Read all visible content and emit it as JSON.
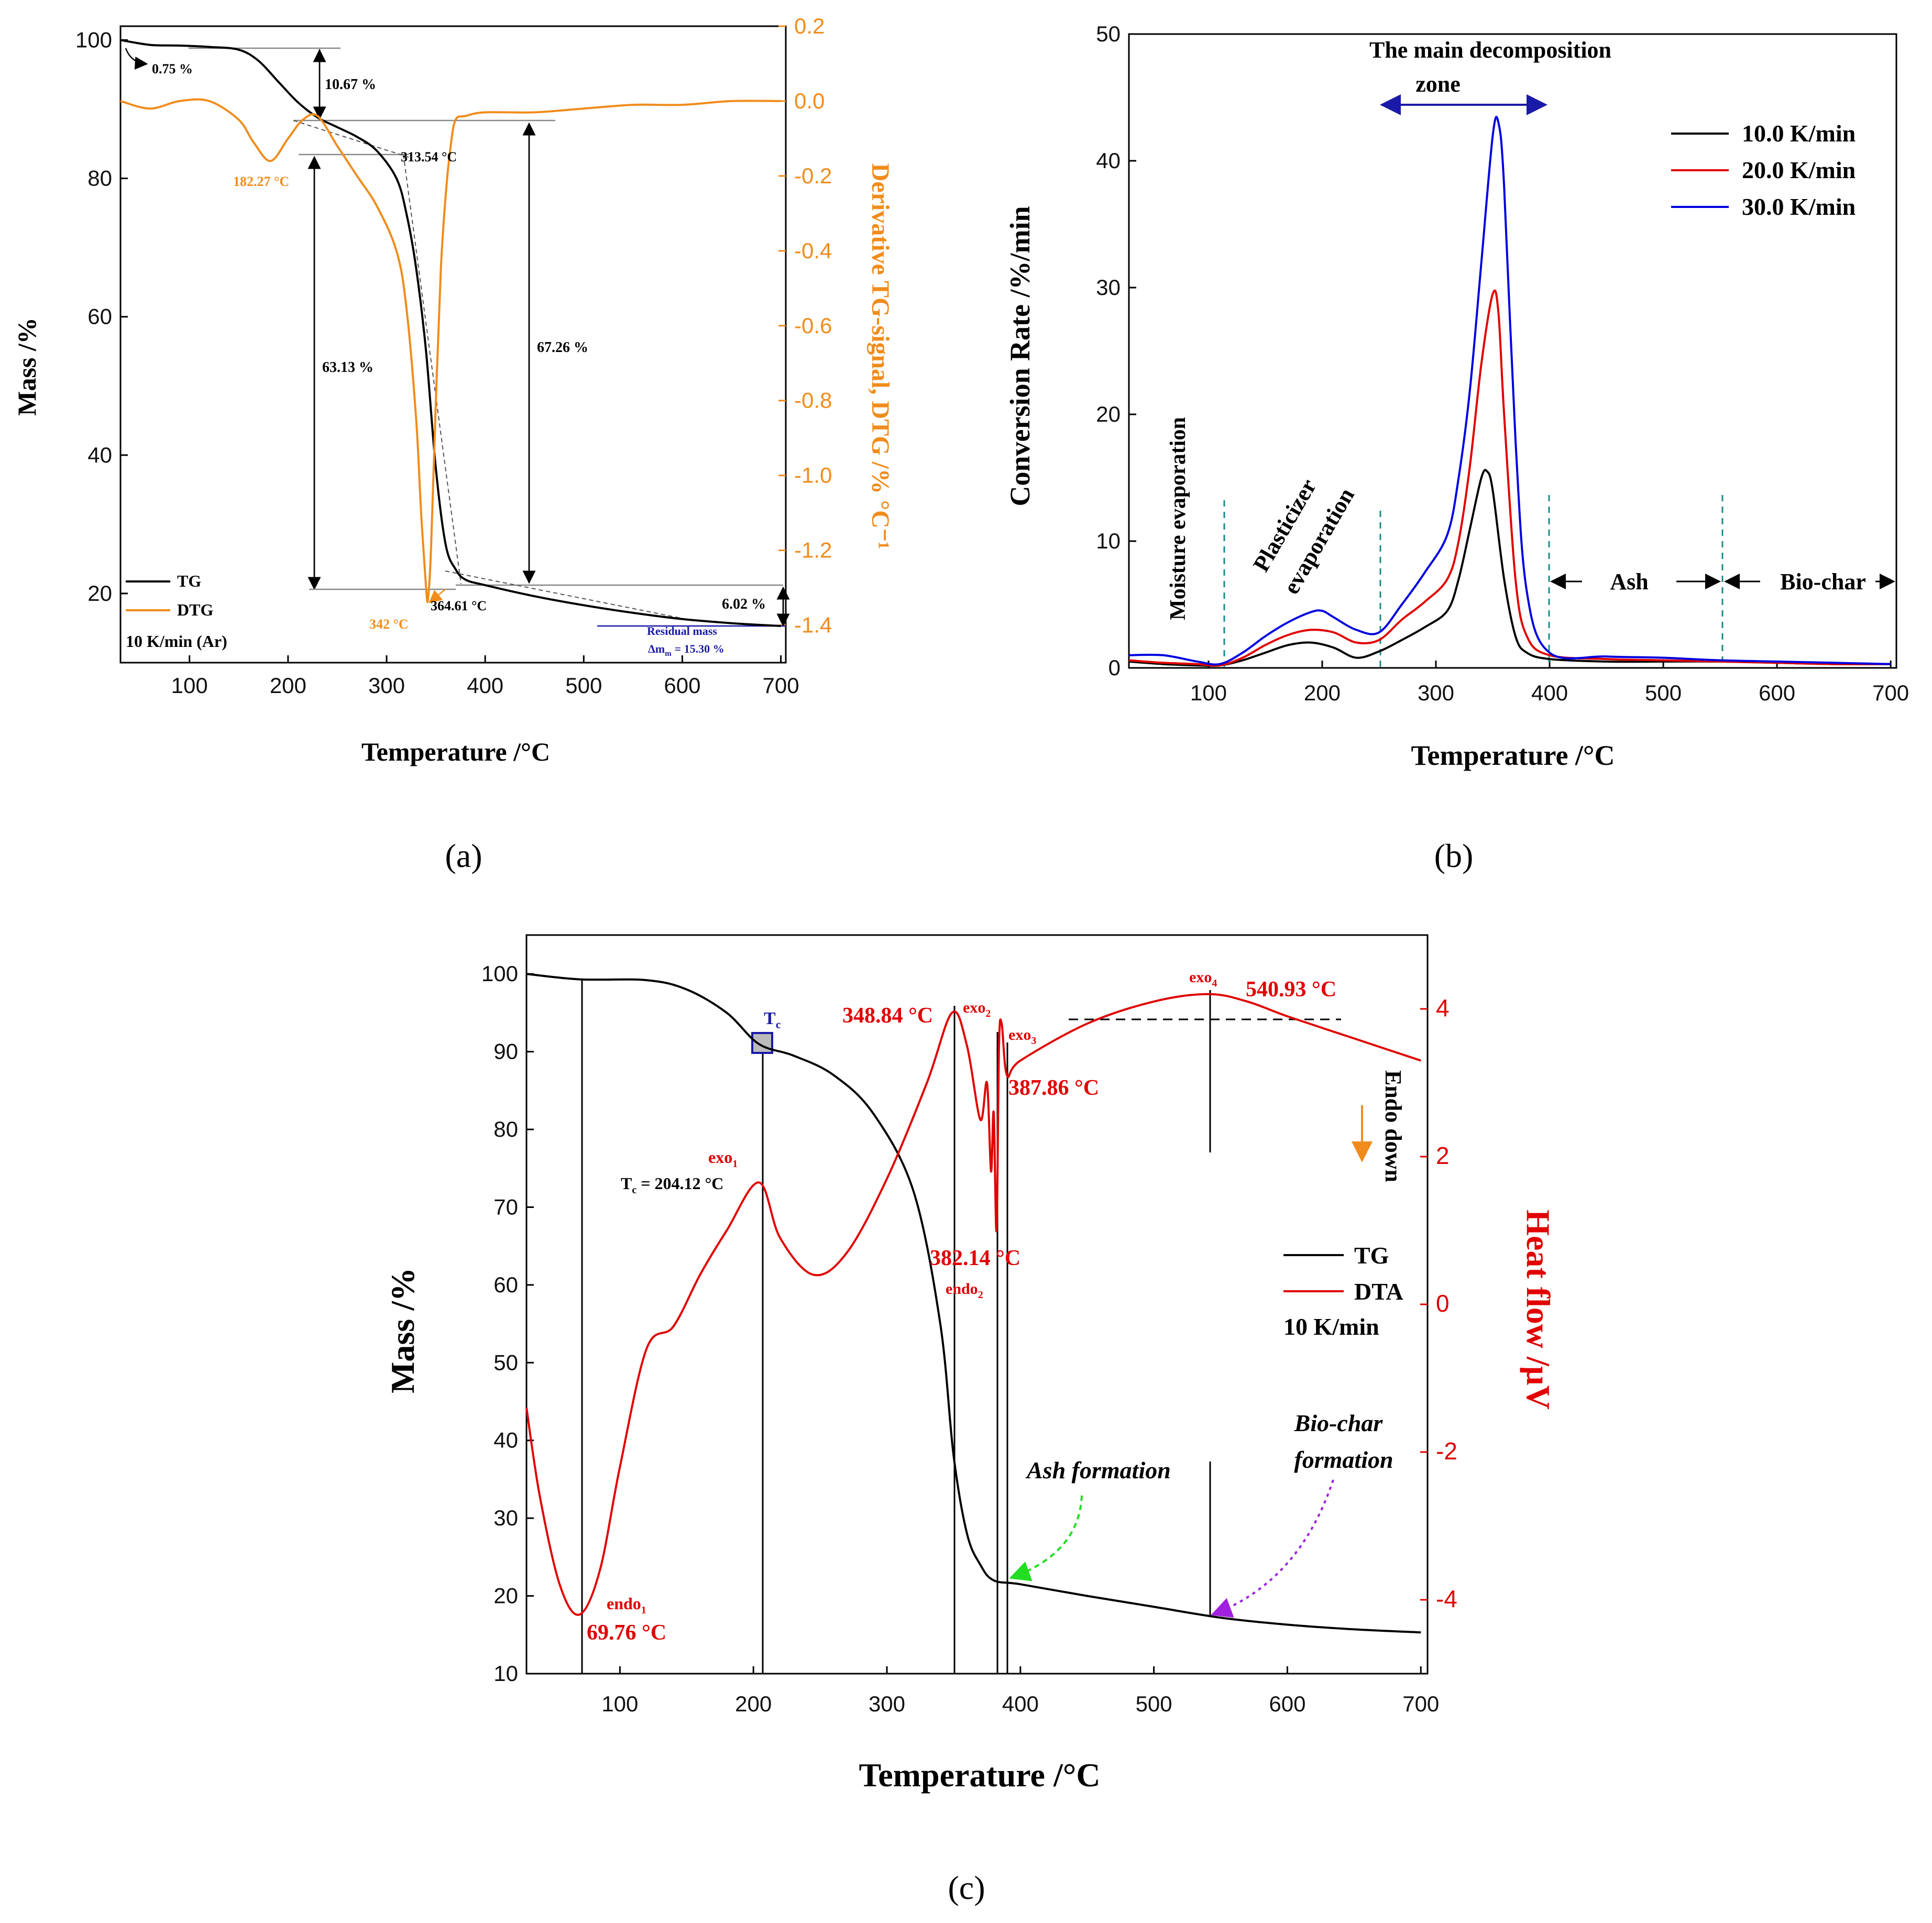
{
  "chart_data": [
    {
      "panel": "(a)",
      "type": "line",
      "xlabel": "Temperature /°C",
      "ylabel": "Mass /%",
      "ylabel_right": "Derivative TG-signal, DTG /% °C⁻¹",
      "xlim": [
        30,
        705
      ],
      "ylim": [
        10,
        102
      ],
      "ylim_right": [
        -1.5,
        0.2
      ],
      "xticks": [
        100,
        200,
        300,
        400,
        500,
        600,
        700
      ],
      "yticks": [
        20,
        40,
        60,
        80,
        100
      ],
      "yticks_right": [
        "0.2",
        "0.0",
        "-0.2",
        "-0.4",
        "-0.6",
        "-0.8",
        "-1.0",
        "-1.2",
        "-1.4"
      ],
      "legend": [
        "TG",
        "DTG",
        "10 K/min (Ar)"
      ],
      "legend_position": "bottom-left",
      "colors": {
        "TG": "#000000",
        "DTG": "#f08c1c"
      },
      "series": [
        {
          "name": "TG",
          "axis": "left",
          "x": [
            30,
            60,
            90,
            120,
            150,
            170,
            190,
            210,
            230,
            250,
            270,
            290,
            310,
            320,
            330,
            340,
            350,
            360,
            370,
            380,
            400,
            450,
            500,
            550,
            600,
            650,
            700
          ],
          "y": [
            100,
            99.3,
            99.2,
            99,
            98.6,
            97,
            94,
            91,
            88.8,
            87.4,
            86,
            84,
            80,
            75,
            67,
            55,
            38,
            27,
            23.5,
            22,
            21.2,
            19.6,
            18.3,
            17.2,
            16.3,
            15.7,
            15.3
          ]
        },
        {
          "name": "DTG",
          "axis": "right",
          "x": [
            30,
            60,
            90,
            120,
            150,
            165,
            182.27,
            200,
            215,
            230,
            250,
            270,
            290,
            310,
            320,
            330,
            335,
            340,
            342,
            345,
            350,
            355,
            360,
            365,
            370,
            380,
            400,
            450,
            500,
            550,
            600,
            650,
            700
          ],
          "y": [
            0.0,
            -0.02,
            0.0,
            0.0,
            -0.05,
            -0.11,
            -0.16,
            -0.1,
            -0.05,
            -0.04,
            -0.12,
            -0.2,
            -0.28,
            -0.4,
            -0.55,
            -0.85,
            -1.1,
            -1.3,
            -1.33,
            -1.2,
            -0.8,
            -0.45,
            -0.25,
            -0.12,
            -0.05,
            -0.04,
            -0.03,
            -0.03,
            -0.02,
            -0.01,
            -0.01,
            0.0,
            0.0
          ]
        }
      ],
      "annotations": [
        "0.75 %",
        "10.67 %",
        "182.27 °C",
        "313.54 °C",
        "63.13 %",
        "67.26 %",
        "342 °C",
        "364.61 °C",
        "6.02 %",
        "Residual mass",
        "Δm",
        "m",
        "= 15.30 %"
      ]
    },
    {
      "panel": "(b)",
      "type": "line",
      "xlabel": "Temperature /°C",
      "ylabel": "Conversion Rate /%/min",
      "xlim": [
        30,
        705
      ],
      "ylim": [
        0,
        50
      ],
      "xticks": [
        100,
        200,
        300,
        400,
        500,
        600,
        700
      ],
      "yticks": [
        0,
        10,
        20,
        30,
        40,
        50
      ],
      "legend": [
        "10.0 K/min",
        "20.0 K/min",
        "30.0 K/min"
      ],
      "legend_position": "top-right",
      "colors": {
        "10.0 K/min": "#000000",
        "20.0 K/min": "#e00000",
        "30.0 K/min": "#0000e0"
      },
      "series": [
        {
          "name": "10.0 K/min",
          "x": [
            30,
            60,
            90,
            110,
            130,
            150,
            170,
            190,
            210,
            230,
            250,
            270,
            290,
            310,
            320,
            330,
            340,
            345,
            350,
            360,
            370,
            380,
            400,
            450,
            500,
            550,
            600,
            650,
            700
          ],
          "y": [
            0.5,
            0.3,
            0.2,
            0.2,
            0.6,
            1.2,
            1.8,
            2.0,
            1.6,
            0.8,
            1.3,
            2.2,
            3.2,
            4.5,
            7,
            11,
            15,
            15.5,
            14,
            7,
            2.5,
            1.2,
            0.7,
            0.5,
            0.5,
            0.5,
            0.4,
            0.3,
            0.3
          ]
        },
        {
          "name": "20.0 K/min",
          "x": [
            30,
            60,
            90,
            110,
            130,
            150,
            170,
            190,
            210,
            230,
            250,
            270,
            290,
            310,
            320,
            330,
            340,
            350,
            355,
            360,
            370,
            380,
            400,
            450,
            500,
            550,
            600,
            650,
            700
          ],
          "y": [
            0.6,
            0.4,
            0.3,
            0.2,
            0.8,
            1.8,
            2.6,
            3.0,
            2.8,
            2.0,
            2.2,
            3.8,
            5.2,
            7,
            10,
            16,
            24,
            29.5,
            28,
            20,
            7,
            2.5,
            1.0,
            0.7,
            0.6,
            0.5,
            0.4,
            0.3,
            0.3
          ]
        },
        {
          "name": "30.0 K/min",
          "x": [
            30,
            60,
            90,
            110,
            130,
            150,
            170,
            190,
            200,
            210,
            230,
            250,
            270,
            290,
            310,
            320,
            330,
            340,
            350,
            355,
            360,
            370,
            380,
            400,
            450,
            500,
            550,
            600,
            650,
            700
          ],
          "y": [
            1.0,
            1.0,
            0.5,
            0.3,
            1.2,
            2.5,
            3.6,
            4.4,
            4.5,
            4.0,
            3.0,
            2.8,
            5,
            7.5,
            10.5,
            15,
            22,
            32,
            42,
            43,
            38,
            18,
            6,
            1.2,
            0.9,
            0.8,
            0.6,
            0.5,
            0.4,
            0.3
          ]
        }
      ],
      "annotations": [
        "The main decomposition",
        "zone",
        "Moisture evaporation",
        "Plasticizer",
        "evaporation",
        "Ash",
        "Bio-char"
      ]
    },
    {
      "panel": "(c)",
      "type": "line",
      "xlabel": "Temperature /°C",
      "ylabel": "Mass /%",
      "ylabel_right": "Heat flow /µV",
      "xlim": [
        30,
        705
      ],
      "ylim": [
        10,
        105
      ],
      "ylim_right": [
        -5,
        5
      ],
      "xticks": [
        100,
        200,
        300,
        400,
        500,
        600,
        700
      ],
      "yticks": [
        10,
        20,
        30,
        40,
        50,
        60,
        70,
        80,
        90,
        100
      ],
      "yticks_right": [
        -4,
        -2,
        0,
        2,
        4
      ],
      "legend": [
        "TG",
        "DTA",
        "10 K/min"
      ],
      "legend_position": "right",
      "colors": {
        "TG": "#000000",
        "DTA": "#e00000"
      },
      "series": [
        {
          "name": "TG",
          "axis": "left",
          "x": [
            30,
            70,
            120,
            150,
            180,
            204,
            230,
            260,
            290,
            320,
            340,
            350,
            360,
            370,
            380,
            400,
            450,
            500,
            550,
            600,
            650,
            700
          ],
          "y": [
            100,
            99.3,
            99.2,
            98,
            95,
            91,
            89.5,
            87,
            82,
            72,
            55,
            38,
            28,
            24,
            22,
            21.5,
            20,
            18.6,
            17.2,
            16.3,
            15.7,
            15.3
          ]
        },
        {
          "name": "DTA",
          "axis": "right",
          "x": [
            30,
            40,
            55,
            69.76,
            85,
            100,
            120,
            140,
            160,
            180,
            204.12,
            220,
            245,
            270,
            300,
            330,
            348.84,
            360,
            370,
            375,
            378,
            380,
            382.14,
            384,
            386,
            390,
            400,
            450,
            500,
            540.93,
            570,
            600,
            650,
            700
          ],
          "y": [
            -1.4,
            -2.6,
            -3.8,
            -4.2,
            -3.6,
            -2.2,
            -0.6,
            -0.3,
            0.4,
            1.0,
            1.65,
            0.9,
            0.4,
            0.7,
            1.7,
            3.0,
            3.95,
            3.5,
            2.5,
            3.0,
            1.8,
            2.6,
            1.0,
            3.5,
            3.8,
            3.1,
            3.3,
            3.8,
            4.1,
            4.2,
            4.1,
            3.9,
            3.6,
            3.3
          ]
        }
      ],
      "annotations": [
        "T",
        "c",
        "T",
        "c",
        "= 204.12 °C",
        "exo",
        "1",
        "exo",
        "2",
        "exo",
        "3",
        "exo",
        "4",
        "348.84 °C",
        "387.86 °C",
        "540.93 °C",
        "382.14 °C",
        "endo",
        "2",
        "endo",
        "1",
        "69.76 °C",
        "Endo down",
        "Ash formation",
        "Bio-char",
        "formation"
      ]
    }
  ]
}
